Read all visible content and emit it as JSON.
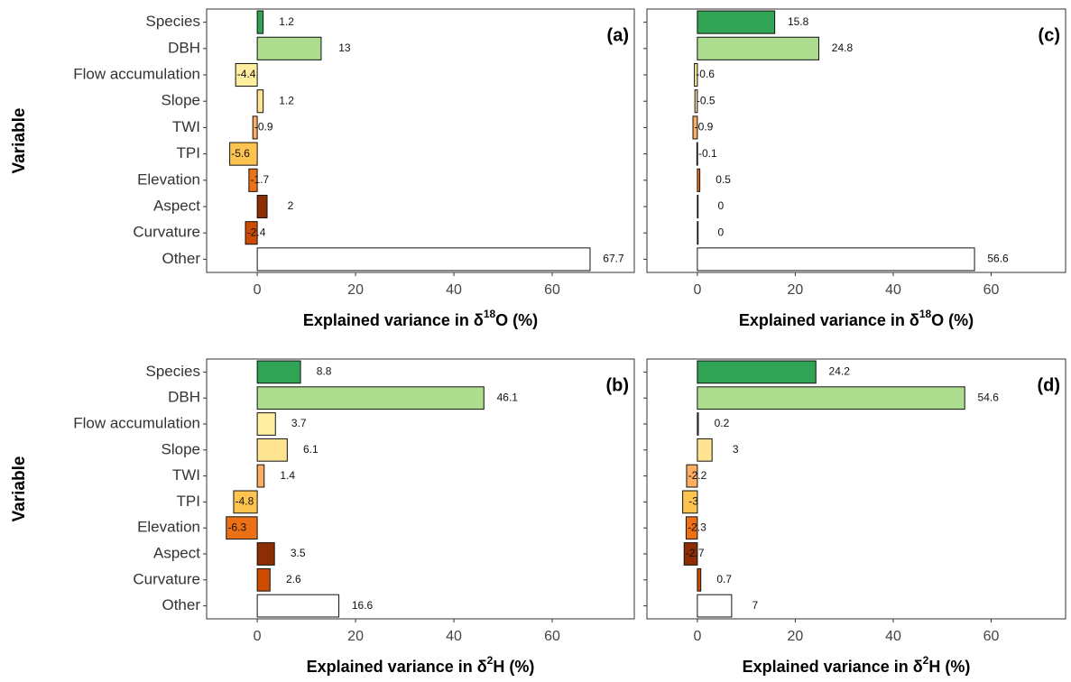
{
  "chart_data": [
    {
      "type": "barh",
      "annotation": "(a)",
      "ylabel": "Variable",
      "xlabel": [
        "Explained variance in δ",
        "18",
        "O (%)"
      ],
      "categories": [
        "Species",
        "DBH",
        "Flow accumulation",
        "Slope",
        "TWI",
        "TPI",
        "Elevation",
        "Aspect",
        "Curvature",
        "Other"
      ],
      "values": [
        1.2,
        13,
        -4.4,
        1.2,
        -0.9,
        -5.6,
        -1.7,
        2,
        -2.4,
        67.7
      ],
      "colors": [
        "#31a354",
        "#addd8e",
        "#ffeda0",
        "#fee391",
        "#fdae61",
        "#fec44f",
        "#ec7014",
        "#8c2d04",
        "#cc4c02",
        "#ffffff"
      ],
      "xlim": [
        -10.3,
        76.7
      ],
      "xticks": [
        0,
        20,
        40,
        60
      ]
    },
    {
      "type": "barh",
      "annotation": "(b)",
      "ylabel": "Variable",
      "xlabel": [
        "Explained variance in δ",
        "2",
        "H (%)"
      ],
      "categories": [
        "Species",
        "DBH",
        "Flow accumulation",
        "Slope",
        "TWI",
        "TPI",
        "Elevation",
        "Aspect",
        "Curvature",
        "Other"
      ],
      "values": [
        8.8,
        46.1,
        3.7,
        6.1,
        1.4,
        -4.8,
        -6.3,
        3.5,
        2.6,
        16.6
      ],
      "colors": [
        "#31a354",
        "#addd8e",
        "#ffeda0",
        "#fee391",
        "#fdae61",
        "#fec44f",
        "#ec7014",
        "#8c2d04",
        "#cc4c02",
        "#ffffff"
      ],
      "xlim": [
        -10.3,
        76.7
      ],
      "xticks": [
        0,
        20,
        40,
        60
      ]
    },
    {
      "type": "barh",
      "annotation": "(c)",
      "xlabel": [
        "Explained variance in δ",
        "18",
        "O (%)"
      ],
      "categories": [
        null,
        null,
        null,
        null,
        null,
        null,
        null,
        null,
        null,
        null
      ],
      "values": [
        15.8,
        24.8,
        -0.6,
        -0.5,
        -0.9,
        -0.1,
        0.5,
        0,
        0,
        56.6
      ],
      "colors": [
        "#31a354",
        "#addd8e",
        "#ffeda0",
        "#fee391",
        "#fdae61",
        "#fec44f",
        "#ec7014",
        "#8c2d04",
        "#cc4c02",
        "#ffffff"
      ],
      "xlim": [
        -10.3,
        75.2
      ],
      "xticks": [
        0,
        20,
        40,
        60
      ]
    },
    {
      "type": "barh",
      "annotation": "(d)",
      "xlabel": [
        "Explained variance in δ",
        "2",
        "H (%)"
      ],
      "categories": [
        null,
        null,
        null,
        null,
        null,
        null,
        null,
        null,
        null,
        null
      ],
      "values": [
        24.2,
        54.6,
        0.2,
        3,
        -2.2,
        -3,
        -2.3,
        -2.7,
        0.7,
        7
      ],
      "colors": [
        "#31a354",
        "#addd8e",
        "#ffeda0",
        "#fee391",
        "#fdae61",
        "#fec44f",
        "#ec7014",
        "#8c2d04",
        "#cc4c02",
        "#ffffff"
      ],
      "xlim": [
        -10.3,
        75.2
      ],
      "xticks": [
        0,
        20,
        40,
        60
      ]
    }
  ]
}
